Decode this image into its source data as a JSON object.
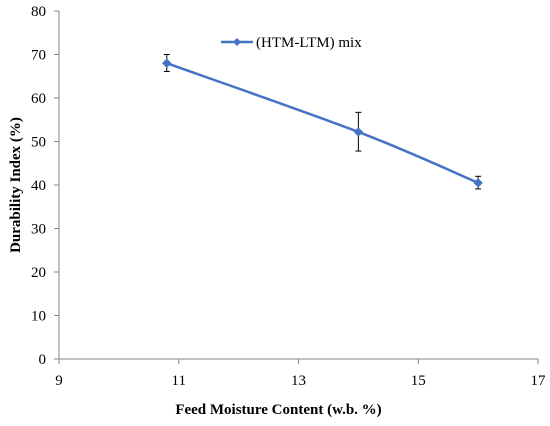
{
  "chart_data": {
    "type": "line",
    "xlabel": "Feed Moisture Content (w.b. %)",
    "ylabel": "Durability Index (%)",
    "xlim": [
      9,
      17
    ],
    "ylim": [
      0,
      80
    ],
    "x_ticks": [
      "9",
      "11",
      "13",
      "15",
      "17"
    ],
    "y_ticks": [
      "0",
      "10",
      "20",
      "30",
      "40",
      "50",
      "60",
      "70",
      "80"
    ],
    "grid": false,
    "legend_position": "top",
    "series": [
      {
        "name": "(HTM-LTM) mix",
        "color": "#4472C4",
        "marker": "diamond",
        "x": [
          10.8,
          14.0,
          16.0
        ],
        "y": [
          68.0,
          52.2,
          40.5
        ],
        "error": [
          [
            1.9,
            2.0
          ],
          [
            4.4,
            4.5
          ],
          [
            1.4,
            1.5
          ]
        ]
      }
    ]
  }
}
